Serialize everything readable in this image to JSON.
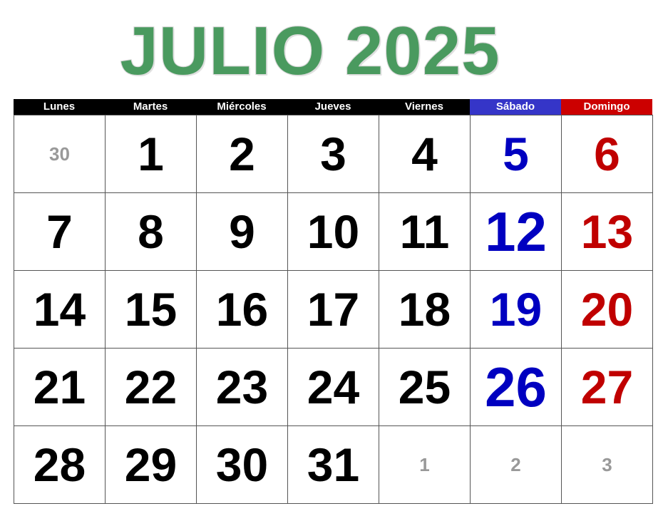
{
  "title": "JULIO 2025",
  "colors": {
    "title": "#4a9a5f",
    "weekday_header": "#000000",
    "saturday": "#0000c0",
    "sunday": "#c00000",
    "saturday_header": "#3535c8",
    "sunday_header": "#cc0000",
    "other_month": "#999999"
  },
  "weekdays": [
    "Lunes",
    "Martes",
    "Miércoles",
    "Jueves",
    "Viernes",
    "Sábado",
    "Domingo"
  ],
  "weeks": [
    [
      "30",
      "1",
      "2",
      "3",
      "4",
      "5",
      "6"
    ],
    [
      "7",
      "8",
      "9",
      "10",
      "11",
      "12",
      "13"
    ],
    [
      "14",
      "15",
      "16",
      "17",
      "18",
      "19",
      "20"
    ],
    [
      "21",
      "22",
      "23",
      "24",
      "25",
      "26",
      "27"
    ],
    [
      "28",
      "29",
      "30",
      "31",
      "1",
      "2",
      "3"
    ]
  ]
}
